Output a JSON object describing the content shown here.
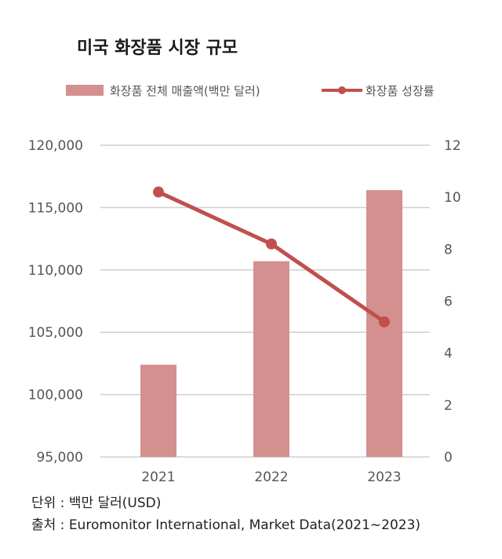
{
  "chart_data": {
    "type": "bar",
    "title": "미국 화장품 시장 규모",
    "categories": [
      "2021",
      "2022",
      "2023"
    ],
    "series": [
      {
        "name": "화장품 전체 매출액(백만 달러)",
        "kind": "bar",
        "axis": "left",
        "values": [
          102400,
          110700,
          116400
        ],
        "color": "#d48f8f"
      },
      {
        "name": "화장품 성장률",
        "kind": "line",
        "axis": "right",
        "values": [
          10.2,
          8.2,
          5.2
        ],
        "color": "#c0504d"
      }
    ],
    "y_left": {
      "min": 95000,
      "max": 120000,
      "ticks": [
        "95,000",
        "100,000",
        "105,000",
        "110,000",
        "115,000",
        "120,000"
      ]
    },
    "y_right": {
      "min": 0,
      "max": 12,
      "ticks": [
        "0",
        "2",
        "4",
        "6",
        "8",
        "10",
        "12"
      ]
    },
    "grid": true,
    "legend": "top"
  },
  "notes": {
    "unit": "단위 : 백만 달러(USD)",
    "source": "출처 :  Euromonitor International, Market Data(2021~2023)"
  }
}
